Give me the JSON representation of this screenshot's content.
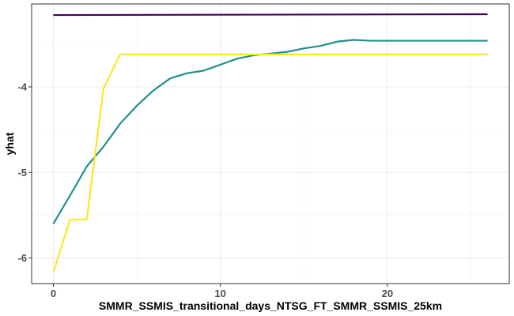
{
  "chart_data": {
    "type": "line",
    "title": "",
    "xlabel": "SMMR_SSMIS_transitional_days_NTSG_FT_SMMR_SSMIS_25km",
    "ylabel": "yhat",
    "xlim": [
      -1.3,
      27.3
    ],
    "ylim": [
      -6.3,
      -3.03
    ],
    "x_ticks": [
      0,
      10,
      20
    ],
    "x_tick_labels": [
      "0",
      "10",
      "20"
    ],
    "y_ticks": [
      -4,
      -5,
      -6
    ],
    "y_tick_labels": [
      "-4",
      "-5",
      "-6"
    ],
    "grid": true,
    "legend": "none",
    "series": [
      {
        "color": "#440154",
        "x": [
          0,
          26
        ],
        "y": [
          -3.16,
          -3.15
        ]
      },
      {
        "color": "#21908C",
        "x": [
          0,
          1,
          2,
          3,
          4,
          5,
          6,
          7,
          8,
          9,
          10,
          11,
          12,
          13,
          14,
          15,
          16,
          17,
          18,
          19,
          20,
          21,
          22,
          23,
          24,
          25,
          26
        ],
        "y": [
          -5.6,
          -5.27,
          -4.93,
          -4.7,
          -4.43,
          -4.22,
          -4.04,
          -3.9,
          -3.84,
          -3.81,
          -3.74,
          -3.67,
          -3.63,
          -3.61,
          -3.59,
          -3.55,
          -3.52,
          -3.47,
          -3.45,
          -3.46,
          -3.46,
          -3.46,
          -3.46,
          -3.46,
          -3.46,
          -3.46,
          -3.46
        ]
      },
      {
        "color": "#FDE725",
        "x": [
          0,
          1,
          2,
          3,
          4,
          5,
          10,
          15,
          20,
          26
        ],
        "y": [
          -6.17,
          -5.55,
          -5.55,
          -4.02,
          -3.62,
          -3.62,
          -3.62,
          -3.62,
          -3.62,
          -3.62
        ]
      }
    ]
  }
}
